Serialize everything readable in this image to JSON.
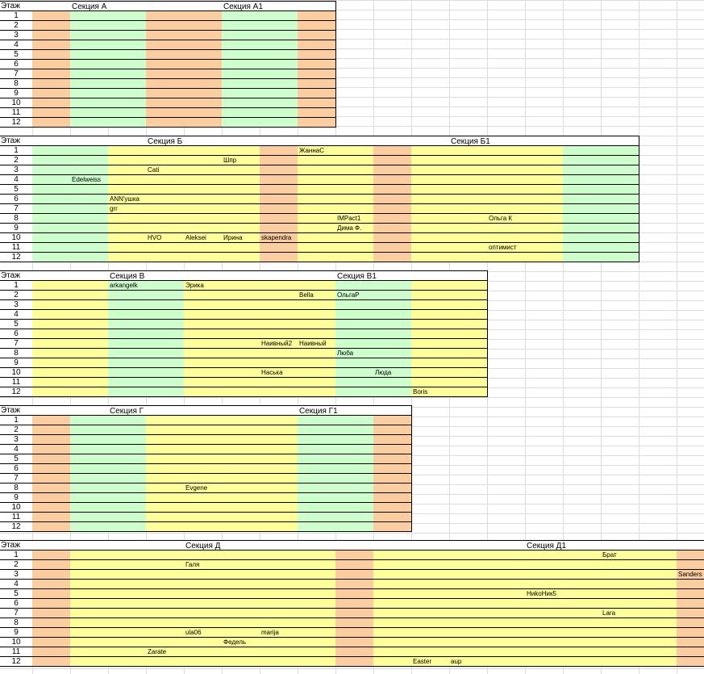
{
  "colors": {
    "o": "#fbcd9f",
    "g": "#ccffcc",
    "y": "#ffff99",
    "w": "#ffffff"
  },
  "floor_header": "Этаж",
  "sections": [
    {
      "id": "A",
      "labels": [
        {
          "col": 1,
          "text": "Секция А"
        },
        {
          "col": 5,
          "text": "Секция А1"
        }
      ],
      "cols": 8,
      "colors": [
        "o",
        "g",
        "g",
        "o",
        "o",
        "g",
        "g",
        "o"
      ],
      "rows": 12,
      "occupants": []
    },
    {
      "id": "B",
      "labels": [
        {
          "col": 3,
          "text": "Секция Б"
        },
        {
          "col": 11,
          "text": "Секция Б1"
        }
      ],
      "cols": 16,
      "colors": [
        "g",
        "g",
        "y",
        "y",
        "y",
        "y",
        "o",
        "y",
        "y",
        "o",
        "y",
        "y",
        "y",
        "y",
        "g",
        "g"
      ],
      "rows": 12,
      "occupants": [
        {
          "row": 1,
          "col": 7,
          "text": "ЖаннаС"
        },
        {
          "row": 2,
          "col": 5,
          "text": "Шпр"
        },
        {
          "row": 3,
          "col": 3,
          "text": "Cati"
        },
        {
          "row": 4,
          "col": 1,
          "text": "Edelweiss"
        },
        {
          "row": 6,
          "col": 2,
          "text": "ANN'ушка"
        },
        {
          "row": 7,
          "col": 2,
          "text": "grr"
        },
        {
          "row": 8,
          "col": 8,
          "text": "IMPact1"
        },
        {
          "row": 8,
          "col": 12,
          "text": "Ольга К"
        },
        {
          "row": 9,
          "col": 8,
          "text": "Дима Ф."
        },
        {
          "row": 10,
          "col": 3,
          "text": "HVO"
        },
        {
          "row": 10,
          "col": 4,
          "text": "Aleksei"
        },
        {
          "row": 10,
          "col": 5,
          "text": "Ирина"
        },
        {
          "row": 10,
          "col": 6,
          "text": "skapendra"
        },
        {
          "row": 11,
          "col": 12,
          "text": "оптимист"
        }
      ]
    },
    {
      "id": "V",
      "labels": [
        {
          "col": 2,
          "text": "Секция В"
        },
        {
          "col": 8,
          "text": "Секция В1"
        }
      ],
      "cols": 12,
      "colors": [
        "y",
        "y",
        "g",
        "g",
        "y",
        "y",
        "y",
        "y",
        "g",
        "g",
        "y",
        "y"
      ],
      "rows": 12,
      "occupants": [
        {
          "row": 1,
          "col": 2,
          "text": "arkangelk"
        },
        {
          "row": 1,
          "col": 4,
          "text": "Эрика"
        },
        {
          "row": 2,
          "col": 7,
          "text": "Bella"
        },
        {
          "row": 2,
          "col": 8,
          "text": "ОльгаР"
        },
        {
          "row": 7,
          "col": 6,
          "text": "Наивный2"
        },
        {
          "row": 7,
          "col": 7,
          "text": "Наивный"
        },
        {
          "row": 8,
          "col": 8,
          "text": "Люба"
        },
        {
          "row": 10,
          "col": 6,
          "text": "Наська"
        },
        {
          "row": 10,
          "col": 9,
          "text": "Люда"
        },
        {
          "row": 12,
          "col": 10,
          "text": "Boris"
        }
      ]
    },
    {
      "id": "G",
      "labels": [
        {
          "col": 2,
          "text": "Секция Г"
        },
        {
          "col": 7,
          "text": "Секция Г1"
        }
      ],
      "cols": 10,
      "colors": [
        "o",
        "g",
        "g",
        "y",
        "y",
        "y",
        "y",
        "g",
        "g",
        "o"
      ],
      "rows": 12,
      "occupants": [
        {
          "row": 8,
          "col": 4,
          "text": "Evgene"
        }
      ]
    },
    {
      "id": "D",
      "labels": [
        {
          "col": 4,
          "text": "Секция Д"
        },
        {
          "col": 13,
          "text": "Секция Д1"
        }
      ],
      "cols": 18,
      "colors": [
        "o",
        "y",
        "y",
        "y",
        "y",
        "y",
        "y",
        "y",
        "o",
        "y",
        "y",
        "y",
        "y",
        "y",
        "y",
        "y",
        "y",
        "o"
      ],
      "rows": 12,
      "occupants": [
        {
          "row": 1,
          "col": 15,
          "text": "Брат"
        },
        {
          "row": 2,
          "col": 4,
          "text": "Галя"
        },
        {
          "row": 3,
          "col": 17,
          "text": "Sanders"
        },
        {
          "row": 5,
          "col": 13,
          "text": "НиkoНик5"
        },
        {
          "row": 7,
          "col": 15,
          "text": "Lara"
        },
        {
          "row": 9,
          "col": 4,
          "text": "ula06"
        },
        {
          "row": 9,
          "col": 6,
          "text": "marija"
        },
        {
          "row": 10,
          "col": 5,
          "text": "Федель"
        },
        {
          "row": 11,
          "col": 3,
          "text": "Zarate"
        },
        {
          "row": 12,
          "col": 10,
          "text": "Easter"
        },
        {
          "row": 12,
          "col": 11,
          "text": "aup"
        }
      ]
    }
  ]
}
